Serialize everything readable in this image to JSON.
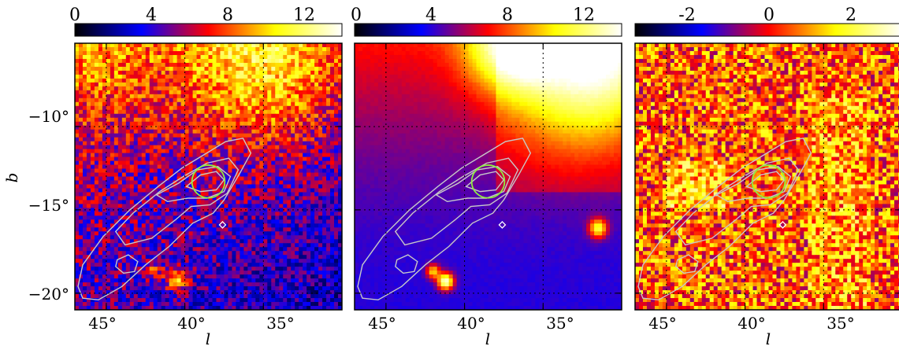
{
  "chart_data": [
    {
      "type": "heatmap",
      "panel": "left",
      "colorbar": {
        "ticks": [
          0,
          4,
          8,
          12
        ],
        "range": [
          0,
          14
        ],
        "colormap": [
          "#000000",
          "#0000ff",
          "#ff0000",
          "#ffff00",
          "#ffffff"
        ]
      },
      "xlabel": "l",
      "ylabel": "b",
      "x_ticks": [
        "45°",
        "40°",
        "35°"
      ],
      "y_ticks": [
        "−10°",
        "−15°",
        "−20°"
      ],
      "xlim": [
        47,
        30
      ],
      "ylim": [
        -21,
        -5
      ],
      "grid": true,
      "texture": "noisy",
      "background_level": 4.5,
      "hotspots": [
        {
          "l": 35,
          "b": -5.5,
          "value": 10,
          "spread": 4
        },
        {
          "l": 46,
          "b": -5.5,
          "value": 7,
          "spread": 3
        },
        {
          "l": 40.5,
          "b": -19.2,
          "value": 9,
          "spread": 0.5
        },
        {
          "l": 42,
          "b": -18.7,
          "value": 7,
          "spread": 0.4
        }
      ]
    },
    {
      "type": "heatmap",
      "panel": "middle",
      "colorbar": {
        "ticks": [
          0,
          4,
          8,
          12
        ],
        "range": [
          0,
          14
        ],
        "colormap": [
          "#000000",
          "#0000ff",
          "#ff0000",
          "#ffff00",
          "#ffffff"
        ]
      },
      "xlabel": "l",
      "x_ticks": [
        "45°",
        "40°",
        "35°"
      ],
      "xlim": [
        47,
        30
      ],
      "ylim": [
        -21,
        -5
      ],
      "grid": true,
      "texture": "smooth",
      "background_level": 4,
      "hotspots": [
        {
          "l": 37,
          "b": -5,
          "value": 11,
          "spread": 2
        },
        {
          "l": 31,
          "b": -5,
          "value": 9,
          "spread": 3
        },
        {
          "l": 33,
          "b": -8,
          "value": 7,
          "spread": 3
        },
        {
          "l": 41.2,
          "b": -19.3,
          "value": 12,
          "spread": 0.35
        },
        {
          "l": 31.5,
          "b": -16.1,
          "value": 10,
          "spread": 0.4
        },
        {
          "l": 42,
          "b": -18.7,
          "value": 9,
          "spread": 0.3
        }
      ]
    },
    {
      "type": "heatmap",
      "panel": "right",
      "colorbar": {
        "ticks": [
          -2,
          0,
          2
        ],
        "range": [
          -3.5,
          3
        ],
        "colormap": [
          "#000000",
          "#0000ff",
          "#ff0000",
          "#ffff00",
          "#ffffff"
        ]
      },
      "xlabel": "l",
      "x_ticks": [
        "45°",
        "40°",
        "35°"
      ],
      "xlim": [
        47,
        30
      ],
      "ylim": [
        -21,
        -5
      ],
      "grid": true,
      "texture": "residual",
      "background_level": 0.3
    }
  ],
  "overlay": {
    "contour_color": "#c8c8c8",
    "circle_color": "#90ee40",
    "circle": {
      "l": 38.5,
      "b": -13.3,
      "r": 1.05
    },
    "marker": {
      "l": 37.6,
      "b": -15.9
    }
  }
}
